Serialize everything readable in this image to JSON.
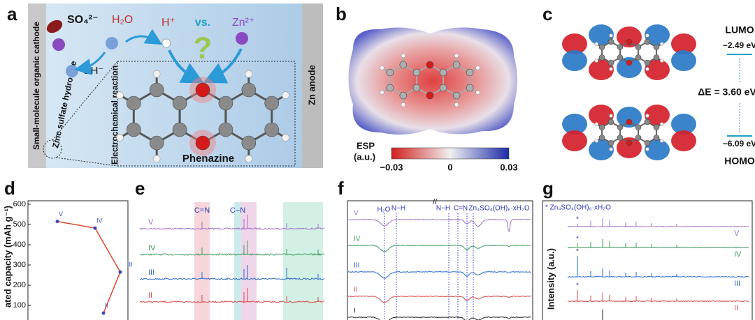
{
  "panel_labels": [
    "a",
    "b",
    "c",
    "d",
    "e",
    "f",
    "g"
  ],
  "panel_a": {
    "ions": {
      "sulfate": "SO₄²⁻",
      "water": "H₂O",
      "proton": "H⁺",
      "versus": "vs.",
      "zinc": "Zn²⁺",
      "hydroxide": "OH⁻",
      "question": "?"
    },
    "cathode": "Small-molecule organic cathode",
    "hydroxide_layer": "Zinc sulfate hydroxide",
    "reaction": "Electrochemical reaction",
    "molecule": "Phenazine",
    "anode": "Zn anode"
  },
  "panel_b": {
    "colorbar_title": "ESP",
    "colorbar_unit": "(a.u.)",
    "colorbar_ticks": [
      "−0.03",
      "0",
      "0.03"
    ]
  },
  "panel_c": {
    "lumo": "LUMO",
    "lumo_energy": "−2.49 eV",
    "gap": "ΔE = 3.60 eV",
    "homo_energy": "−6.09 eV",
    "homo": "HOMO"
  },
  "chart_data": {
    "type": "line",
    "y_label": "ated capacity (mAh g⁻¹)",
    "categories": [
      "V",
      "IV",
      "III",
      "II"
    ],
    "series": [
      {
        "color": "#e0452e",
        "values": [
          515,
          482,
          265,
          62
        ]
      }
    ],
    "ylim": [
      28,
      617
    ],
    "yticks": [
      100,
      200,
      300,
      400,
      500,
      600
    ]
  },
  "panel_e": {
    "peaks": [
      "C=N",
      "C−N"
    ],
    "traces": [
      "V",
      "IV",
      "III",
      "II"
    ]
  },
  "panel_f": {
    "peaks": [
      "H₂O",
      "N−H",
      "N−H",
      "C=N",
      "Zn₄SO₄(OH)₆·xH₂O"
    ],
    "break": "//",
    "traces": [
      "V",
      "IV",
      "III",
      "II",
      "I"
    ]
  },
  "panel_g": {
    "legend": "* Zn₄SO₄(OH)₆·xH₂O",
    "marker": "*",
    "y_label": "Intensity (a.u.)",
    "traces": [
      "V",
      "IV",
      "III",
      "II"
    ]
  }
}
